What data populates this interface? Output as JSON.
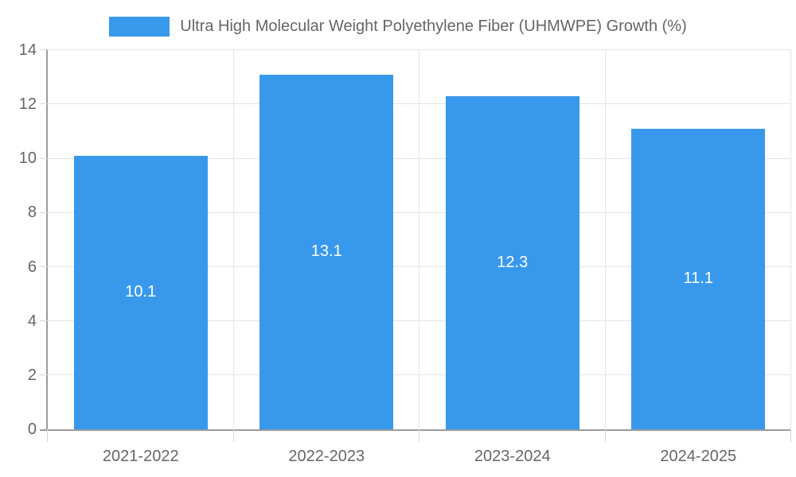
{
  "chart_data": {
    "type": "bar",
    "title": "",
    "legend_label": "Ultra High Molecular Weight Polyethylene Fiber (UHMWPE) Growth (%)",
    "legend_position": "top-center",
    "categories": [
      "2021-2022",
      "2022-2023",
      "2023-2024",
      "2024-2025"
    ],
    "series": [
      {
        "name": "Ultra High Molecular Weight Polyethylene Fiber (UHMWPE) Growth (%)",
        "values": [
          10.1,
          13.1,
          12.3,
          11.1
        ]
      }
    ],
    "value_labels": [
      "10.1",
      "13.1",
      "12.3",
      "11.1"
    ],
    "xlabel": "",
    "ylabel": "",
    "ylim": [
      0,
      14
    ],
    "yticks": [
      0,
      2,
      4,
      6,
      8,
      10,
      12,
      14
    ],
    "grid": true,
    "colors": {
      "bar_fill": "#3899ec",
      "value_label_text": "#ffffff",
      "axis_line": "#9b9b9b",
      "gridline": "#e4e4e4",
      "tick_mark": "#d8d8d8",
      "label_text": "#666666",
      "background": "#ffffff"
    }
  }
}
